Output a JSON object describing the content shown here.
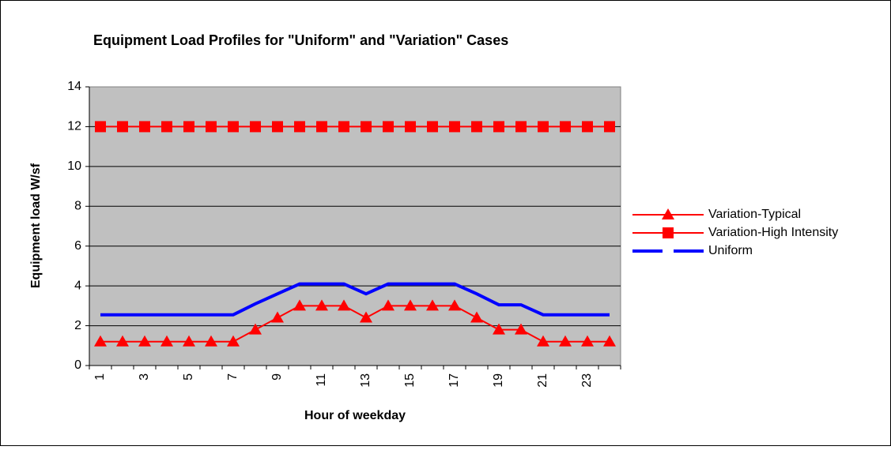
{
  "chart_data": {
    "type": "line",
    "title": "Equipment Load Profiles for \"Uniform\" and \"Variation\" Cases",
    "x_label": "Hour of weekday",
    "y_label": "Equipment load W/sf",
    "categories": [
      "1",
      null,
      "3",
      null,
      "5",
      null,
      "7",
      null,
      "9",
      null,
      "11",
      null,
      "13",
      null,
      "15",
      null,
      "17",
      null,
      "19",
      null,
      "21",
      null,
      "23",
      null
    ],
    "series": [
      {
        "name": "Variation-Typical",
        "color": "#ff0000",
        "marker": "triangle",
        "values": [
          1.2,
          1.2,
          1.2,
          1.2,
          1.2,
          1.2,
          1.2,
          1.8,
          2.4,
          3,
          3,
          3,
          2.4,
          3,
          3,
          3,
          3,
          2.4,
          1.8,
          1.8,
          1.2,
          1.2,
          1.2,
          1.2
        ]
      },
      {
        "name": "Variation-High Intensity",
        "color": "#ff0000",
        "marker": "square",
        "values": [
          12,
          12,
          12,
          12,
          12,
          12,
          12,
          12,
          12,
          12,
          12,
          12,
          12,
          12,
          12,
          12,
          12,
          12,
          12,
          12,
          12,
          12,
          12,
          12
        ]
      },
      {
        "name": "Uniform",
        "color": "#0000ff",
        "marker": "none",
        "values": [
          2.55,
          2.55,
          2.55,
          2.55,
          2.55,
          2.55,
          2.55,
          3.1,
          3.6,
          4.1,
          4.1,
          4.1,
          3.6,
          4.1,
          4.1,
          4.1,
          4.1,
          3.6,
          3.05,
          3.05,
          2.55,
          2.55,
          2.55,
          2.55
        ]
      }
    ],
    "ylim": [
      0,
      14
    ],
    "yticks": [
      0,
      2,
      4,
      6,
      8,
      10,
      12,
      14
    ],
    "grid": true,
    "legend": "right"
  }
}
